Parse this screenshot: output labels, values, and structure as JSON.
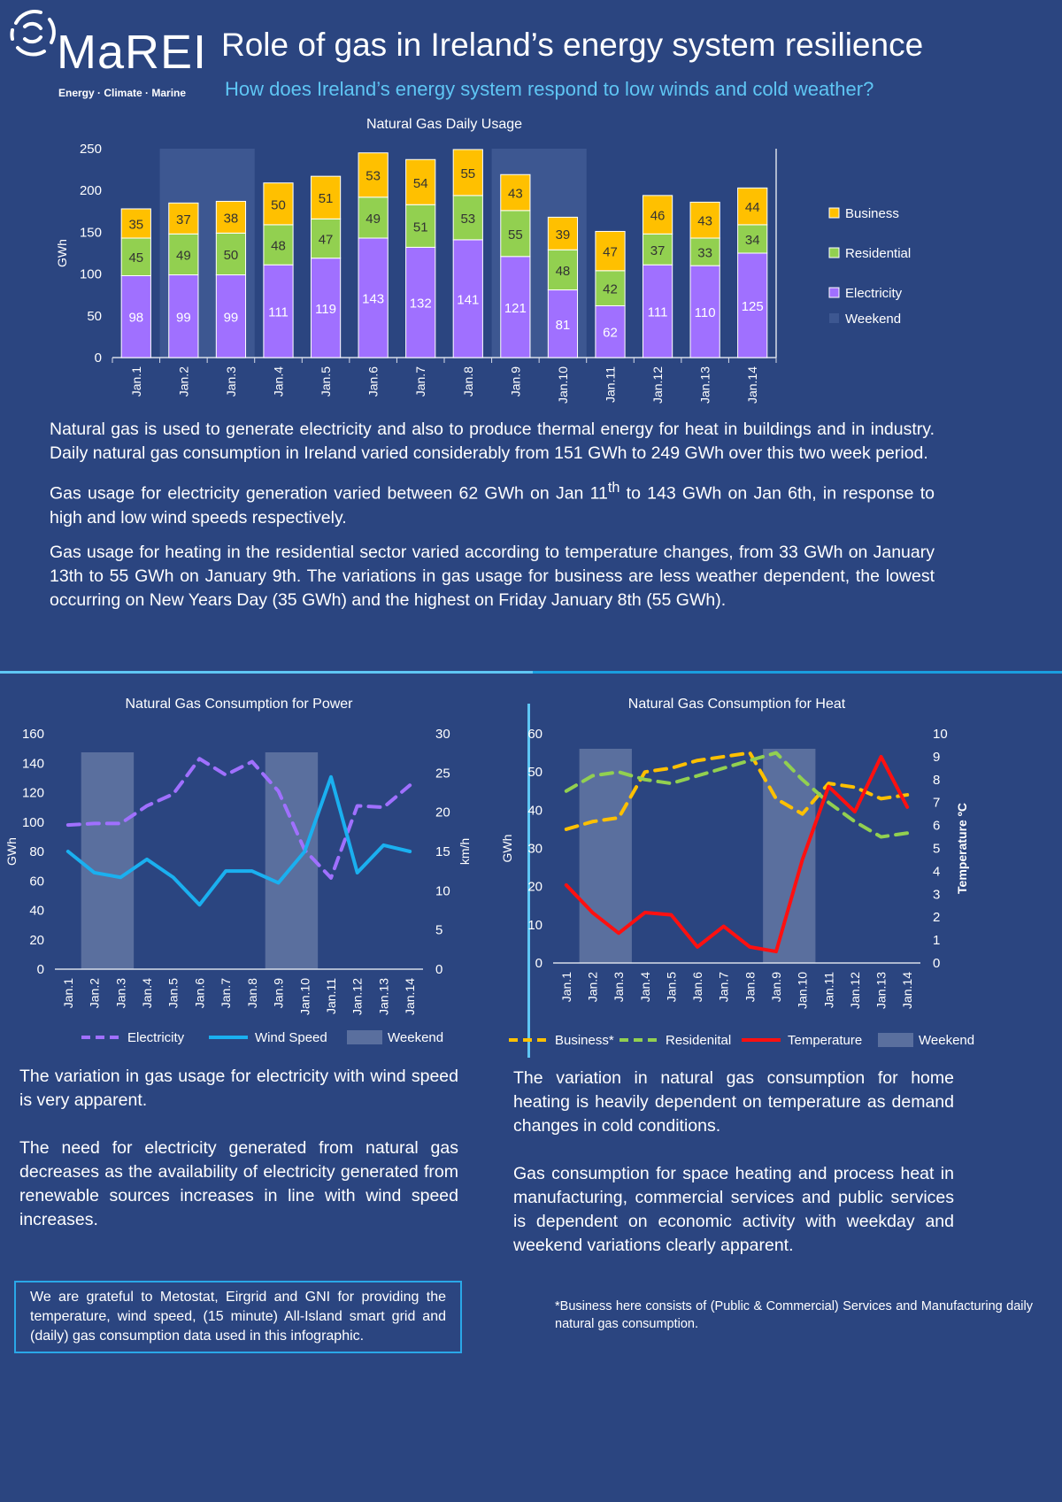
{
  "header": {
    "logo_text": "MaREI",
    "logo_tagline": "Energy · Climate · Marine",
    "title": "Role of gas in Ireland’s energy system resilience",
    "subtitle": "How does Ireland’s energy system respond to low winds and cold weather?"
  },
  "colors": {
    "background": "#2b4580",
    "business": "#ffc000",
    "residential": "#92d050",
    "electricity": "#a070ff",
    "wind": "#1ab0f0",
    "temperature": "#ff1010",
    "weekend": "#5a6f9e",
    "accent": "#5fc6f4"
  },
  "intro": {
    "p1": "Natural gas is used to generate electricity and also to produce thermal energy for heat in buildings and in industry. Daily natural gas consumption in Ireland varied considerably from 151 GWh to 249 GWh over this two week period.",
    "p2a": "Gas usage for electricity generation varied between 62 GWh on Jan 11",
    "p2sup1": "th",
    "p2b": " to 143 GWh on Jan 6th, in response to high and low wind speeds respectively.",
    "p3": "Gas usage for heating in the residential sector varied according to temperature changes, from 33 GWh on January 13th to 55 GWh on January 9th.  The variations in gas usage for business are less weather dependent, the lowest occurring on New Years Day (35 GWh) and the highest on Friday January 8th (55 GWh)."
  },
  "left_text": {
    "p1": "The variation in gas usage for electricity with wind speed is very apparent.",
    "p2": "The need for electricity generated from natural gas decreases as the availability of electricity generated from renewable sources increases in line with wind speed increases."
  },
  "right_text": {
    "p1": "The variation in natural gas consumption for home heating is heavily dependent on temperature as demand changes in cold conditions.",
    "p2": "Gas consumption for space heating and process heat in manufacturing, commercial services and public services is dependent on economic activity with weekday and weekend variations clearly apparent."
  },
  "acknowledgement": "We are grateful to Metostat, Eirgrid and GNI for providing the temperature, wind speed, (15 minute) All-Island smart grid and (daily) gas consumption data used in this infographic.",
  "footnote": "*Business here consists of (Public & Commercial) Services and Manufacturing daily natural gas consumption.",
  "chart_data": [
    {
      "type": "bar",
      "stacked": true,
      "title": "Natural Gas Daily Usage",
      "ylabel": "GWh",
      "ylim": [
        0,
        250
      ],
      "yticks": [
        0,
        50,
        100,
        150,
        200,
        250
      ],
      "categories": [
        "Jan.1",
        "Jan.2",
        "Jan.3",
        "Jan.4",
        "Jan.5",
        "Jan.6",
        "Jan.7",
        "Jan.8",
        "Jan.9",
        "Jan.10",
        "Jan.11",
        "Jan.12",
        "Jan.13",
        "Jan.14"
      ],
      "series": [
        {
          "name": "Electricity",
          "values": [
            98,
            99,
            99,
            111,
            119,
            143,
            132,
            141,
            121,
            81,
            62,
            111,
            110,
            125
          ]
        },
        {
          "name": "Residential",
          "values": [
            45,
            49,
            50,
            48,
            47,
            49,
            51,
            53,
            55,
            48,
            42,
            37,
            33,
            34
          ]
        },
        {
          "name": "Business",
          "values": [
            35,
            37,
            38,
            50,
            51,
            53,
            54,
            55,
            43,
            39,
            47,
            46,
            43,
            44
          ]
        }
      ],
      "weekend": [
        "Jan.2",
        "Jan.3",
        "Jan.9",
        "Jan.10"
      ],
      "weekend_label": "Weekend",
      "legend": "right",
      "grid": false
    },
    {
      "type": "line",
      "title": "Natural Gas Consumption for Power",
      "ylabel": "GWh",
      "ylim": [
        0,
        160
      ],
      "yticks": [
        0,
        20,
        40,
        60,
        80,
        100,
        120,
        140,
        160
      ],
      "y2label": "km/h",
      "y2lim": [
        0,
        30
      ],
      "y2ticks": [
        0,
        5,
        10,
        15,
        20,
        25,
        30
      ],
      "categories": [
        "Jan.1",
        "Jan.2",
        "Jan.3",
        "Jan.4",
        "Jan.5",
        "Jan.6",
        "Jan.7",
        "Jan.8",
        "Jan.9",
        "Jan.10",
        "Jan.11",
        "Jan.12",
        "Jan.13",
        "Jan.14"
      ],
      "series": [
        {
          "name": "Electricity",
          "axis": "left",
          "dashed": true,
          "values": [
            98,
            99,
            99,
            111,
            119,
            143,
            132,
            141,
            121,
            81,
            62,
            111,
            110,
            125
          ]
        },
        {
          "name": "Wind Speed",
          "axis": "right",
          "dashed": false,
          "values": [
            15,
            12.3,
            11.7,
            14,
            11.7,
            8.2,
            12.5,
            12.5,
            11,
            15,
            24.5,
            12.3,
            15.8,
            15
          ]
        }
      ],
      "weekend": [
        "Jan.2",
        "Jan.3",
        "Jan.9",
        "Jan.10"
      ],
      "weekend_label": "Weekend",
      "legend": "bottom",
      "grid": false
    },
    {
      "type": "line",
      "title": "Natural Gas Consumption for Heat",
      "ylabel": "GWh",
      "ylim": [
        0,
        60
      ],
      "yticks": [
        0,
        10,
        20,
        30,
        40,
        50,
        60
      ],
      "y2label": "Temperature ºC",
      "y2lim": [
        0,
        10
      ],
      "y2ticks": [
        0,
        1,
        2,
        3,
        4,
        5,
        6,
        7,
        8,
        9,
        10
      ],
      "categories": [
        "Jan.1",
        "Jan.2",
        "Jan.3",
        "Jan.4",
        "Jan.5",
        "Jan.6",
        "Jan.7",
        "Jan.8",
        "Jan.9",
        "Jan.10",
        "Jan.11",
        "Jan.12",
        "Jan.13",
        "Jan.14"
      ],
      "series": [
        {
          "name": "Business*",
          "axis": "left",
          "dashed": true,
          "values": [
            35,
            37,
            38,
            50,
            51,
            53,
            54,
            55,
            43,
            39,
            47,
            46,
            43,
            44
          ]
        },
        {
          "name": "Residenital",
          "axis": "left",
          "dashed": true,
          "values": [
            45,
            49,
            50,
            48,
            47,
            49,
            51,
            53,
            55,
            48,
            42,
            37,
            33,
            34
          ]
        },
        {
          "name": "Temperature",
          "axis": "right",
          "dashed": false,
          "values": [
            3.4,
            2.2,
            1.3,
            2.2,
            2.1,
            0.7,
            1.6,
            0.7,
            0.5,
            4.5,
            7.7,
            6.6,
            9,
            6.8
          ]
        }
      ],
      "weekend": [
        "Jan.2",
        "Jan.3",
        "Jan.9",
        "Jan.10"
      ],
      "weekend_label": "Weekend",
      "legend": "bottom",
      "grid": false
    }
  ]
}
